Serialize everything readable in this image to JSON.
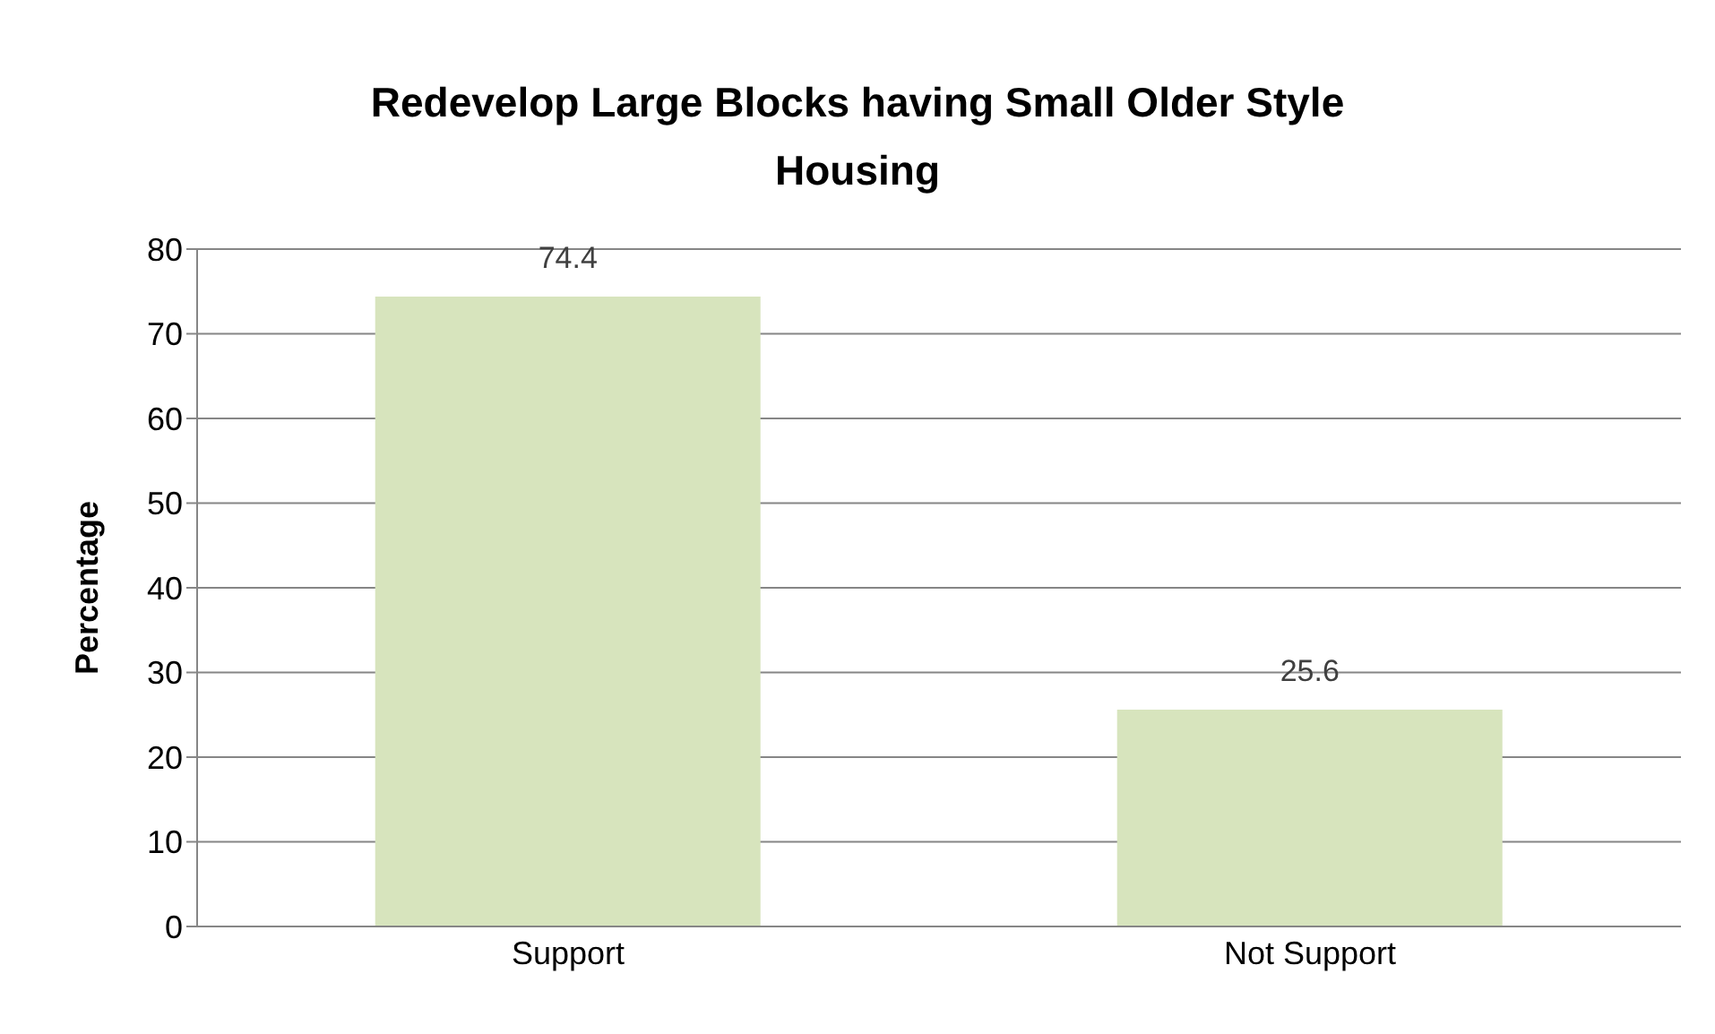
{
  "chart_data": {
    "type": "bar",
    "title": "Redevelop Large Blocks having Small Older Style Housing",
    "ylabel": "Percentage",
    "categories": [
      "Support",
      "Not Support"
    ],
    "values": [
      74.4,
      25.6
    ],
    "color": "#d7e4bd",
    "ylim": [
      0,
      80
    ],
    "yticks": [
      0,
      10,
      20,
      30,
      40,
      50,
      60,
      70,
      80
    ],
    "grid": "y",
    "data_labels": true
  }
}
